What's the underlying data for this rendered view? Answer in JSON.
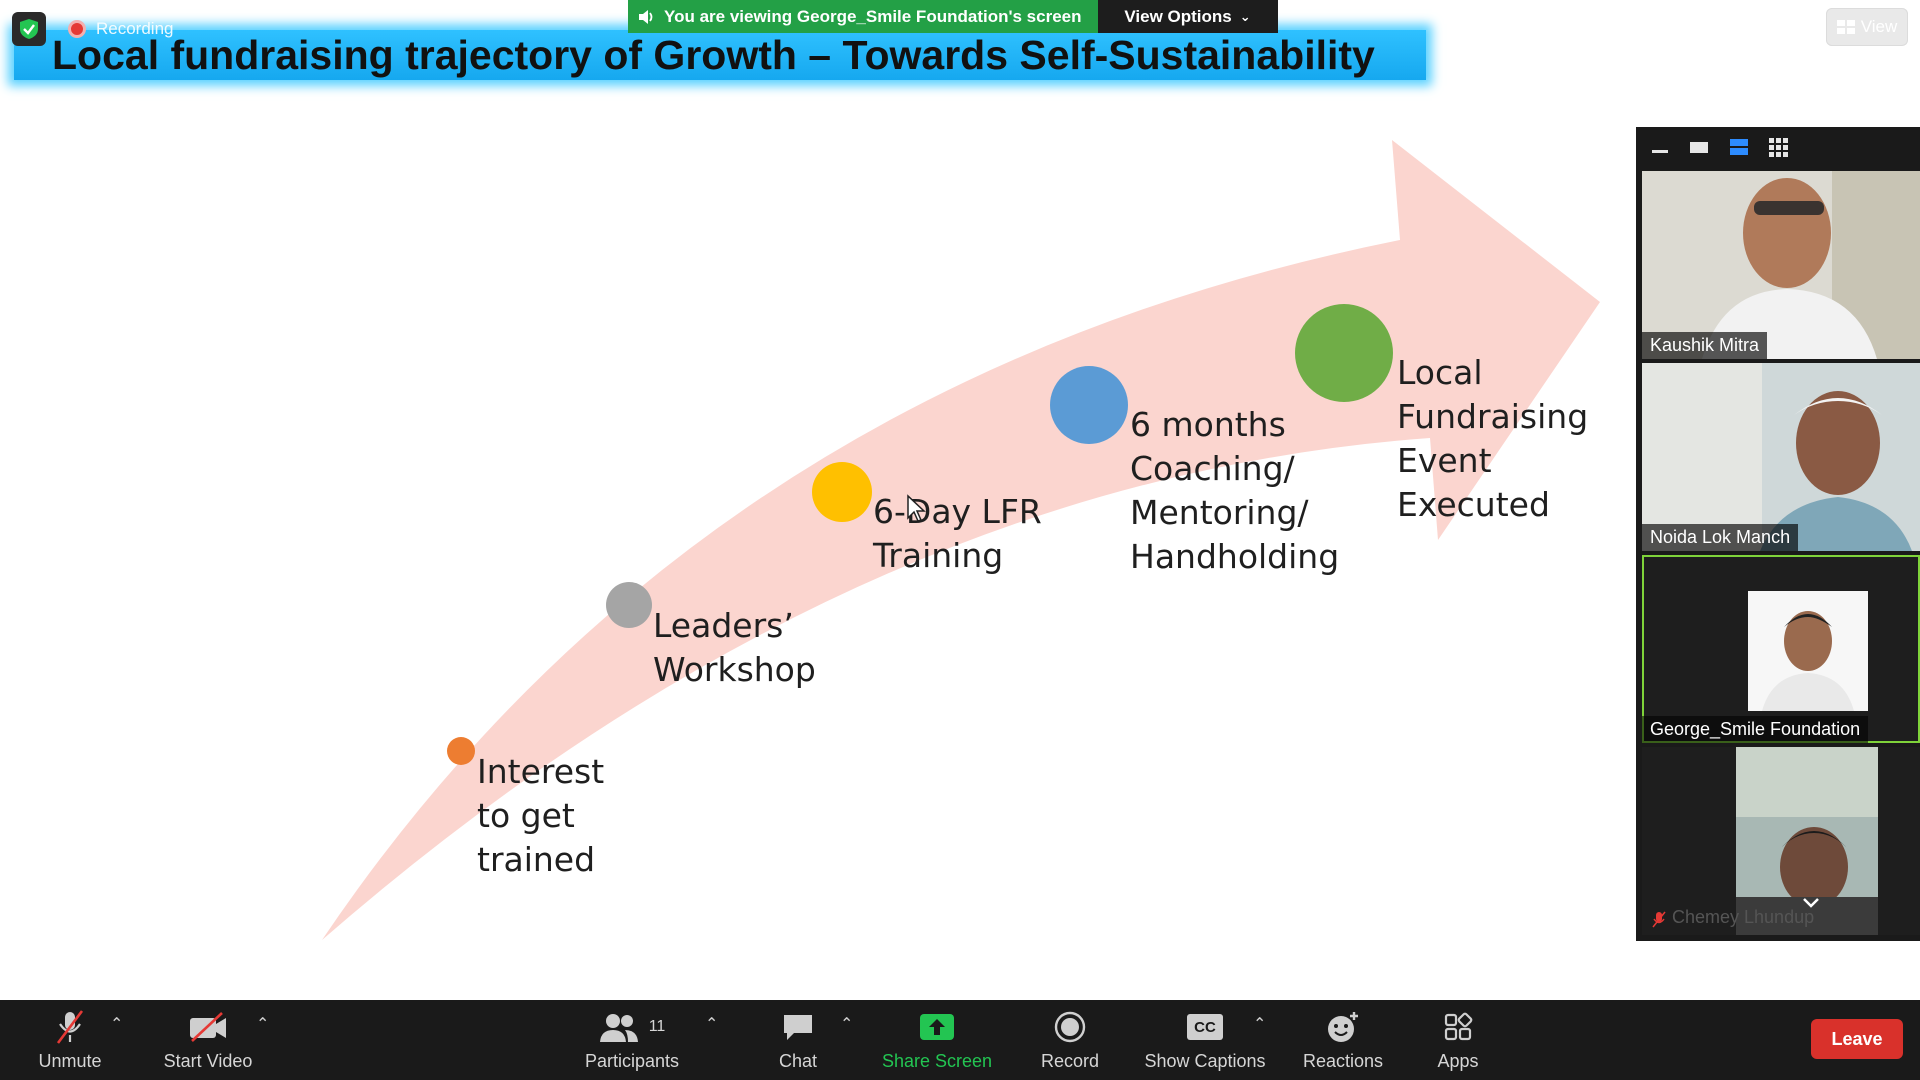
{
  "top_bar": {
    "recording_label": "Recording",
    "viewing_banner": "You are viewing George_Smile Foundation's screen",
    "view_options_label": "View Options",
    "view_button_label": "View"
  },
  "slide": {
    "title": "Local fundraising trajectory of Growth – Towards Self-Sustainability",
    "steps": [
      {
        "label": "Interest\nto get\ntrained",
        "color": "#ed7d31"
      },
      {
        "label": "Leaders’\nWorkshop",
        "color": "#a5a5a5"
      },
      {
        "label": "6-Day LFR\nTraining",
        "color": "#ffc000"
      },
      {
        "label": "6 months\nCoaching/\nMentoring/\nHandholding",
        "color": "#5b9bd5"
      },
      {
        "label": "Local\nFundraising\nEvent\nExecuted",
        "color": "#70ad47"
      }
    ],
    "arrow_color": "#fbd5cf"
  },
  "participants_panel": {
    "tiles": [
      {
        "name": "Kaushik Mitra"
      },
      {
        "name": "Noida Lok Manch"
      },
      {
        "name": "George_Smile Foundation",
        "active_speaker": true
      },
      {
        "name": "Chemey Lhundup",
        "muted": true
      }
    ]
  },
  "toolbar": {
    "unmute_label": "Unmute",
    "start_video_label": "Start Video",
    "participants_label": "Participants",
    "participants_count": "11",
    "chat_label": "Chat",
    "share_screen_label": "Share Screen",
    "record_label": "Record",
    "captions_label": "Show Captions",
    "captions_icon_text": "CC",
    "reactions_label": "Reactions",
    "apps_label": "Apps",
    "leave_label": "Leave"
  },
  "colors": {
    "share_green": "#23c552",
    "leave_red": "#d9312b",
    "active_speaker_border": "#7fd33a"
  }
}
